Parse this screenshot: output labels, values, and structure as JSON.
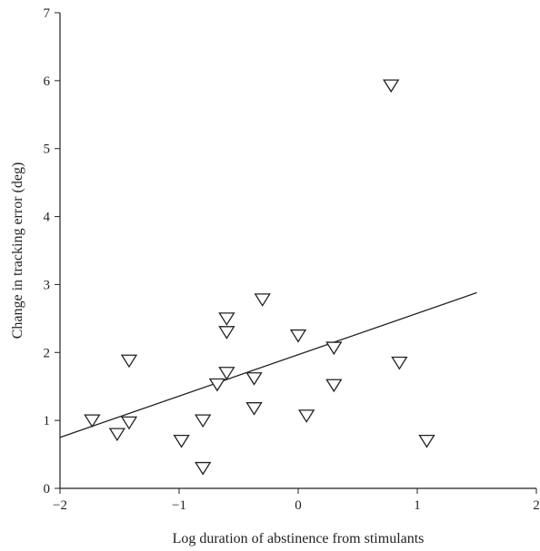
{
  "chart_data": {
    "type": "scatter",
    "title": "",
    "xlabel": "Log duration of abstinence from stimulants",
    "ylabel": "Change in tracking error (deg)",
    "xlim": [
      -2,
      2
    ],
    "ylim": [
      0,
      7
    ],
    "xticks": [
      -2,
      -1,
      0,
      1,
      2
    ],
    "yticks": [
      0,
      1,
      2,
      3,
      4,
      5,
      6,
      7
    ],
    "xtick_labels": [
      "−2",
      "−1",
      "0",
      "1",
      "2"
    ],
    "ytick_labels": [
      "0",
      "1",
      "2",
      "3",
      "4",
      "5",
      "6",
      "7"
    ],
    "grid": false,
    "marker": "open-triangle-down",
    "color": "#222222",
    "points": [
      {
        "x": -1.73,
        "y": 1.0
      },
      {
        "x": -1.52,
        "y": 0.8
      },
      {
        "x": -1.42,
        "y": 1.88
      },
      {
        "x": -1.42,
        "y": 0.97
      },
      {
        "x": -0.98,
        "y": 0.7
      },
      {
        "x": -0.8,
        "y": 0.3
      },
      {
        "x": -0.8,
        "y": 1.0
      },
      {
        "x": -0.68,
        "y": 1.53
      },
      {
        "x": -0.6,
        "y": 2.5
      },
      {
        "x": -0.6,
        "y": 2.3
      },
      {
        "x": -0.6,
        "y": 1.7
      },
      {
        "x": -0.37,
        "y": 1.62
      },
      {
        "x": -0.37,
        "y": 1.18
      },
      {
        "x": -0.3,
        "y": 2.78
      },
      {
        "x": 0.0,
        "y": 2.25
      },
      {
        "x": 0.07,
        "y": 1.07
      },
      {
        "x": 0.3,
        "y": 2.07
      },
      {
        "x": 0.3,
        "y": 1.52
      },
      {
        "x": 0.78,
        "y": 5.93
      },
      {
        "x": 0.85,
        "y": 1.85
      },
      {
        "x": 1.08,
        "y": 0.7
      }
    ],
    "fit_line": {
      "x": [
        -2,
        1.5
      ],
      "y": [
        0.75,
        2.88
      ]
    }
  }
}
